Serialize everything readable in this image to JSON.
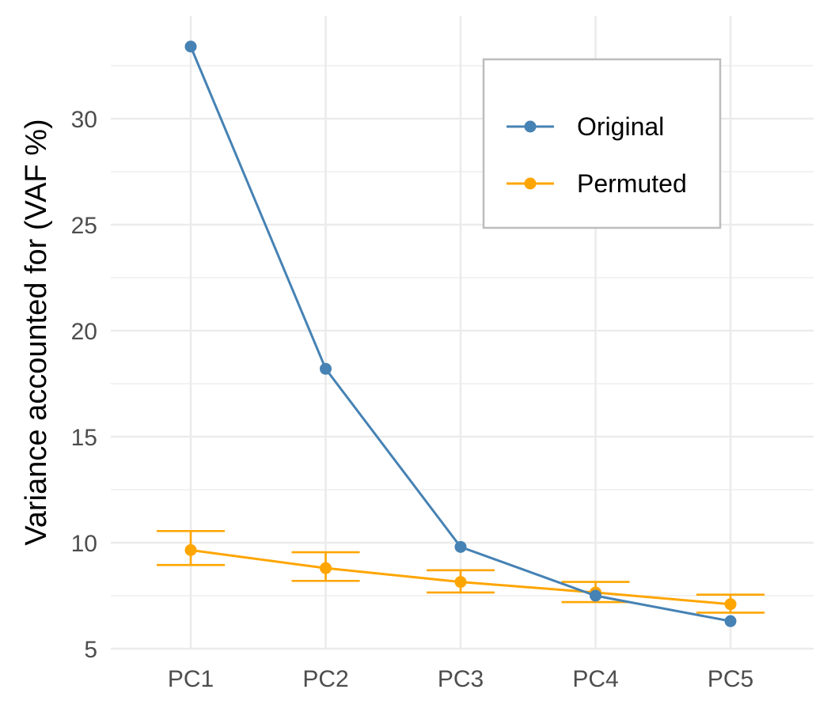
{
  "chart_data": {
    "type": "line",
    "categories": [
      "PC1",
      "PC2",
      "PC3",
      "PC4",
      "PC5"
    ],
    "xlabel": "",
    "ylabel": "Variance accounted for (VAF %)",
    "ylim": [
      5,
      33.6
    ],
    "yticks": [
      5,
      10,
      15,
      20,
      25,
      30
    ],
    "grid": true,
    "legend": "top-right",
    "series": [
      {
        "name": "Original",
        "color": "#4682B4",
        "values": [
          33.4,
          18.2,
          9.8,
          7.5,
          6.3
        ]
      },
      {
        "name": "Permuted",
        "color": "#FFA500",
        "values": [
          9.65,
          8.8,
          8.15,
          7.65,
          7.1
        ],
        "error_low": [
          8.95,
          8.2,
          7.65,
          7.2,
          6.7
        ],
        "error_high": [
          10.55,
          9.55,
          8.7,
          8.15,
          7.55
        ]
      }
    ]
  }
}
